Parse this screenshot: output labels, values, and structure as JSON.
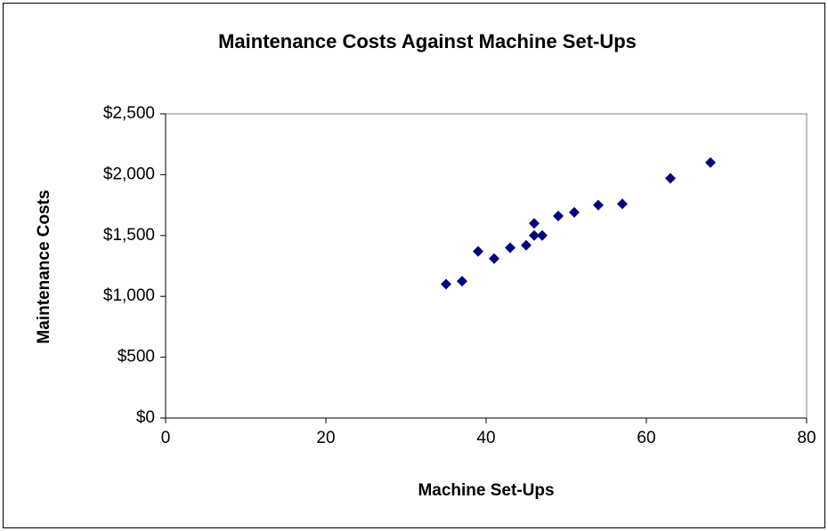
{
  "chart_data": {
    "type": "scatter",
    "title": "Maintenance Costs Against Machine Set-Ups",
    "x_label": "Machine Set-Ups",
    "y_label": "Maintenance Costs",
    "x": [
      35,
      37,
      39,
      41,
      43,
      45,
      46,
      46,
      47,
      49,
      51,
      54,
      57,
      63,
      68
    ],
    "series": [
      {
        "name": "Maintenance Costs",
        "color": "#000080",
        "values": [
          1100,
          1125,
          1370,
          1310,
          1400,
          1420,
          1600,
          1500,
          1500,
          1660,
          1690,
          1750,
          1760,
          1970,
          2100
        ]
      }
    ],
    "xlim": [
      0,
      80
    ],
    "xticks": [
      0,
      20,
      40,
      60,
      80
    ],
    "ylim": [
      0,
      2500
    ],
    "yticks": [
      {
        "value": 0,
        "label": "$0"
      },
      {
        "value": 500,
        "label": "$500"
      },
      {
        "value": 1000,
        "label": "$1,000"
      },
      {
        "value": 1500,
        "label": "$1,500"
      },
      {
        "value": 2000,
        "label": "$2,000"
      },
      {
        "value": 2500,
        "label": "$2,500"
      }
    ],
    "grid": false
  }
}
